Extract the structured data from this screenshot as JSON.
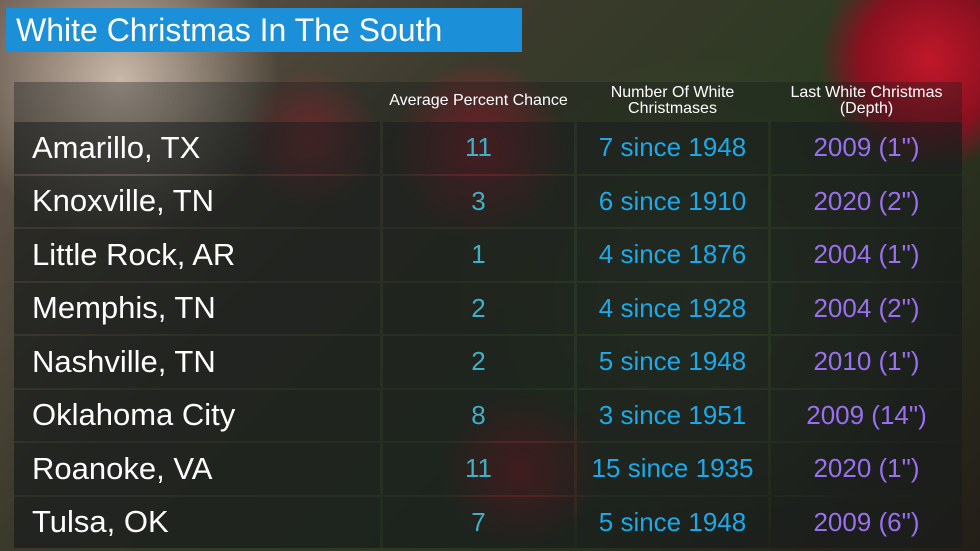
{
  "title": "White Christmas In The South",
  "colors": {
    "title_bg": "#1b8fd8",
    "percent": "#3fb0c8",
    "count": "#1ea8e8",
    "last": "#9a6ff0"
  },
  "chart_data": {
    "type": "table",
    "title": "White Christmas In The South",
    "columns": [
      "",
      "Average Percent Chance",
      "Number Of White Christmases",
      "Last White Christmas (Depth)"
    ],
    "rows": [
      [
        "Amarillo, TX",
        "11",
        "7 since 1948",
        "2009 (1\")"
      ],
      [
        "Knoxville, TN",
        "3",
        "6 since 1910",
        "2020 (2\")"
      ],
      [
        "Little Rock, AR",
        "1",
        "4 since 1876",
        "2004 (1\")"
      ],
      [
        "Memphis, TN",
        "2",
        "4 since 1928",
        "2004 (2\")"
      ],
      [
        "Nashville, TN",
        "2",
        "5 since 1948",
        "2010 (1\")"
      ],
      [
        "Oklahoma City",
        "8",
        "3 since 1951",
        "2009 (14\")"
      ],
      [
        "Roanoke, VA",
        "11",
        "15 since 1935",
        "2020 (1\")"
      ],
      [
        "Tulsa, OK",
        "7",
        "5 since 1948",
        "2009 (6\")"
      ]
    ]
  }
}
